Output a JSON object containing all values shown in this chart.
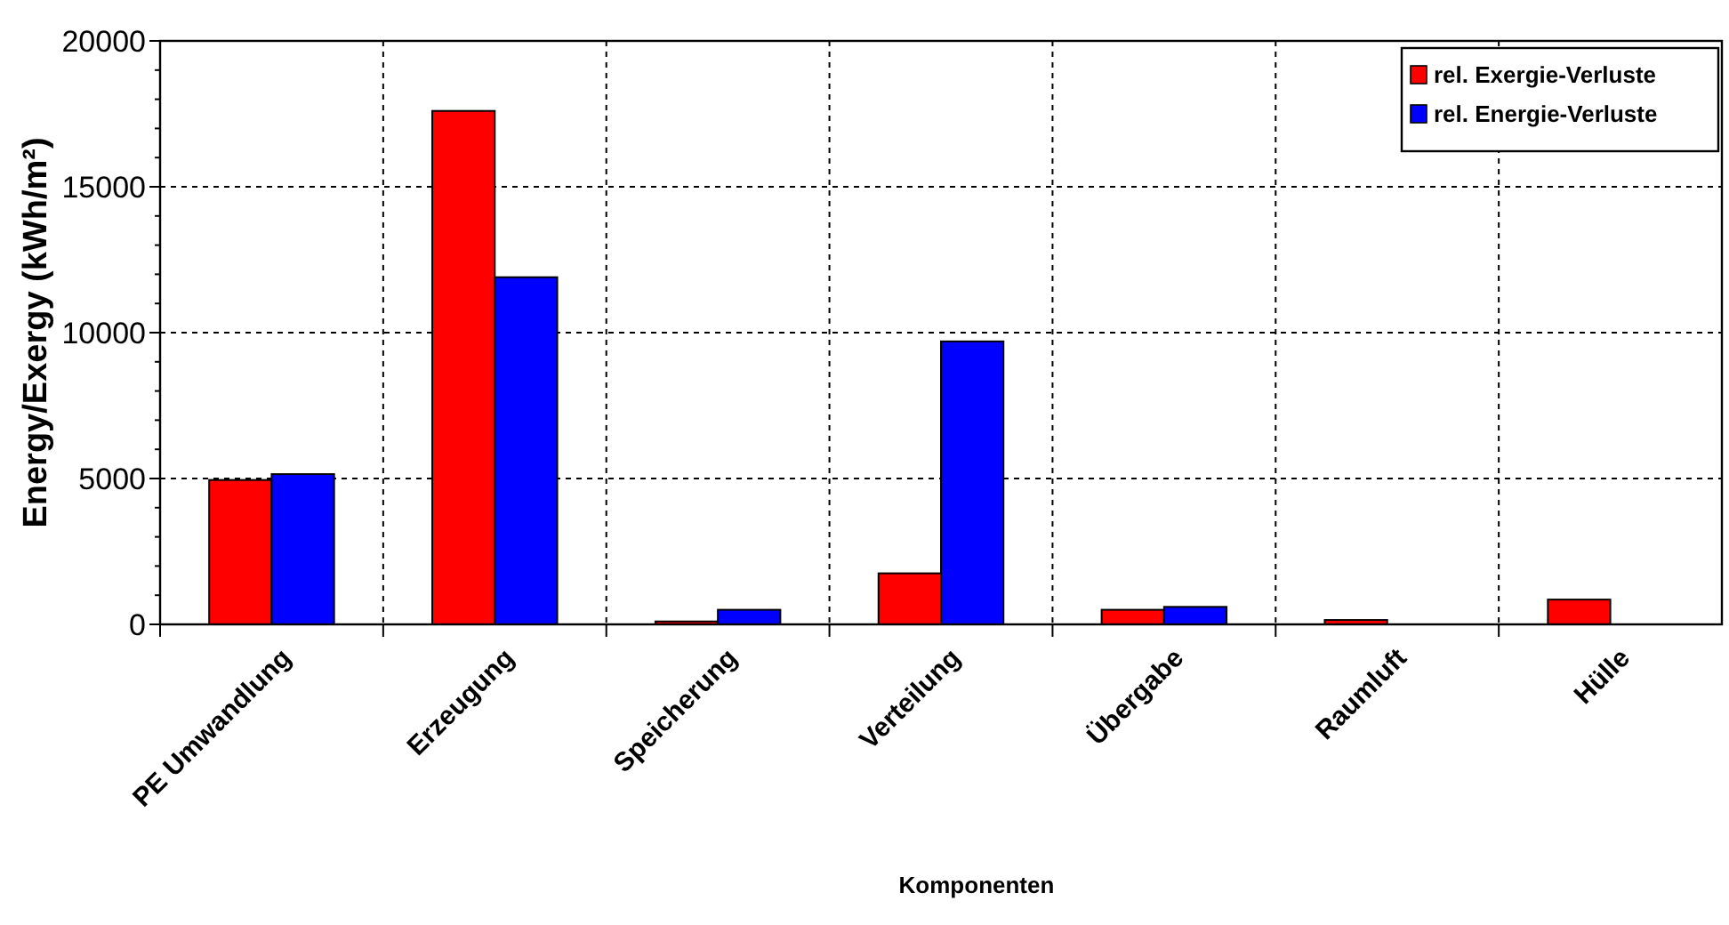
{
  "chart_data": {
    "type": "bar",
    "xlabel": "Komponenten",
    "ylabel": "Energy/Exergy (kWh/m²)",
    "categories": [
      "PE Umwandlung",
      "Erzeugung",
      "Speicherung",
      "Verteilung",
      "Übergabe",
      "Raumluft",
      "Hülle"
    ],
    "series": [
      {
        "name": "rel. Exergie-Verluste",
        "color": "#ff0000",
        "values": [
          4950,
          17600,
          100,
          1750,
          500,
          150,
          850
        ]
      },
      {
        "name": "rel. Energie-Verluste",
        "color": "#0000ff",
        "values": [
          5150,
          11900,
          500,
          9700,
          600,
          0,
          0
        ]
      }
    ],
    "ylim": [
      0,
      20000
    ],
    "yticks": [
      0,
      {
        "value": 1000,
        "label": null
      },
      {
        "value": 2000,
        "label": null
      },
      {
        "value": 3000,
        "label": null
      },
      {
        "value": 4000,
        "label": null
      },
      5000,
      {
        "value": 6000,
        "label": null
      },
      {
        "value": 7000,
        "label": null
      },
      {
        "value": 8000,
        "label": null
      },
      {
        "value": 9000,
        "label": null
      },
      10000,
      {
        "value": 11000,
        "label": null
      },
      {
        "value": 12000,
        "label": null
      },
      {
        "value": 13000,
        "label": null
      },
      {
        "value": 14000,
        "label": null
      },
      15000,
      {
        "value": 16000,
        "label": null
      },
      {
        "value": 17000,
        "label": null
      },
      {
        "value": 18000,
        "label": null
      },
      {
        "value": 19000,
        "label": null
      },
      20000
    ],
    "grid": true,
    "legend": "top right"
  }
}
